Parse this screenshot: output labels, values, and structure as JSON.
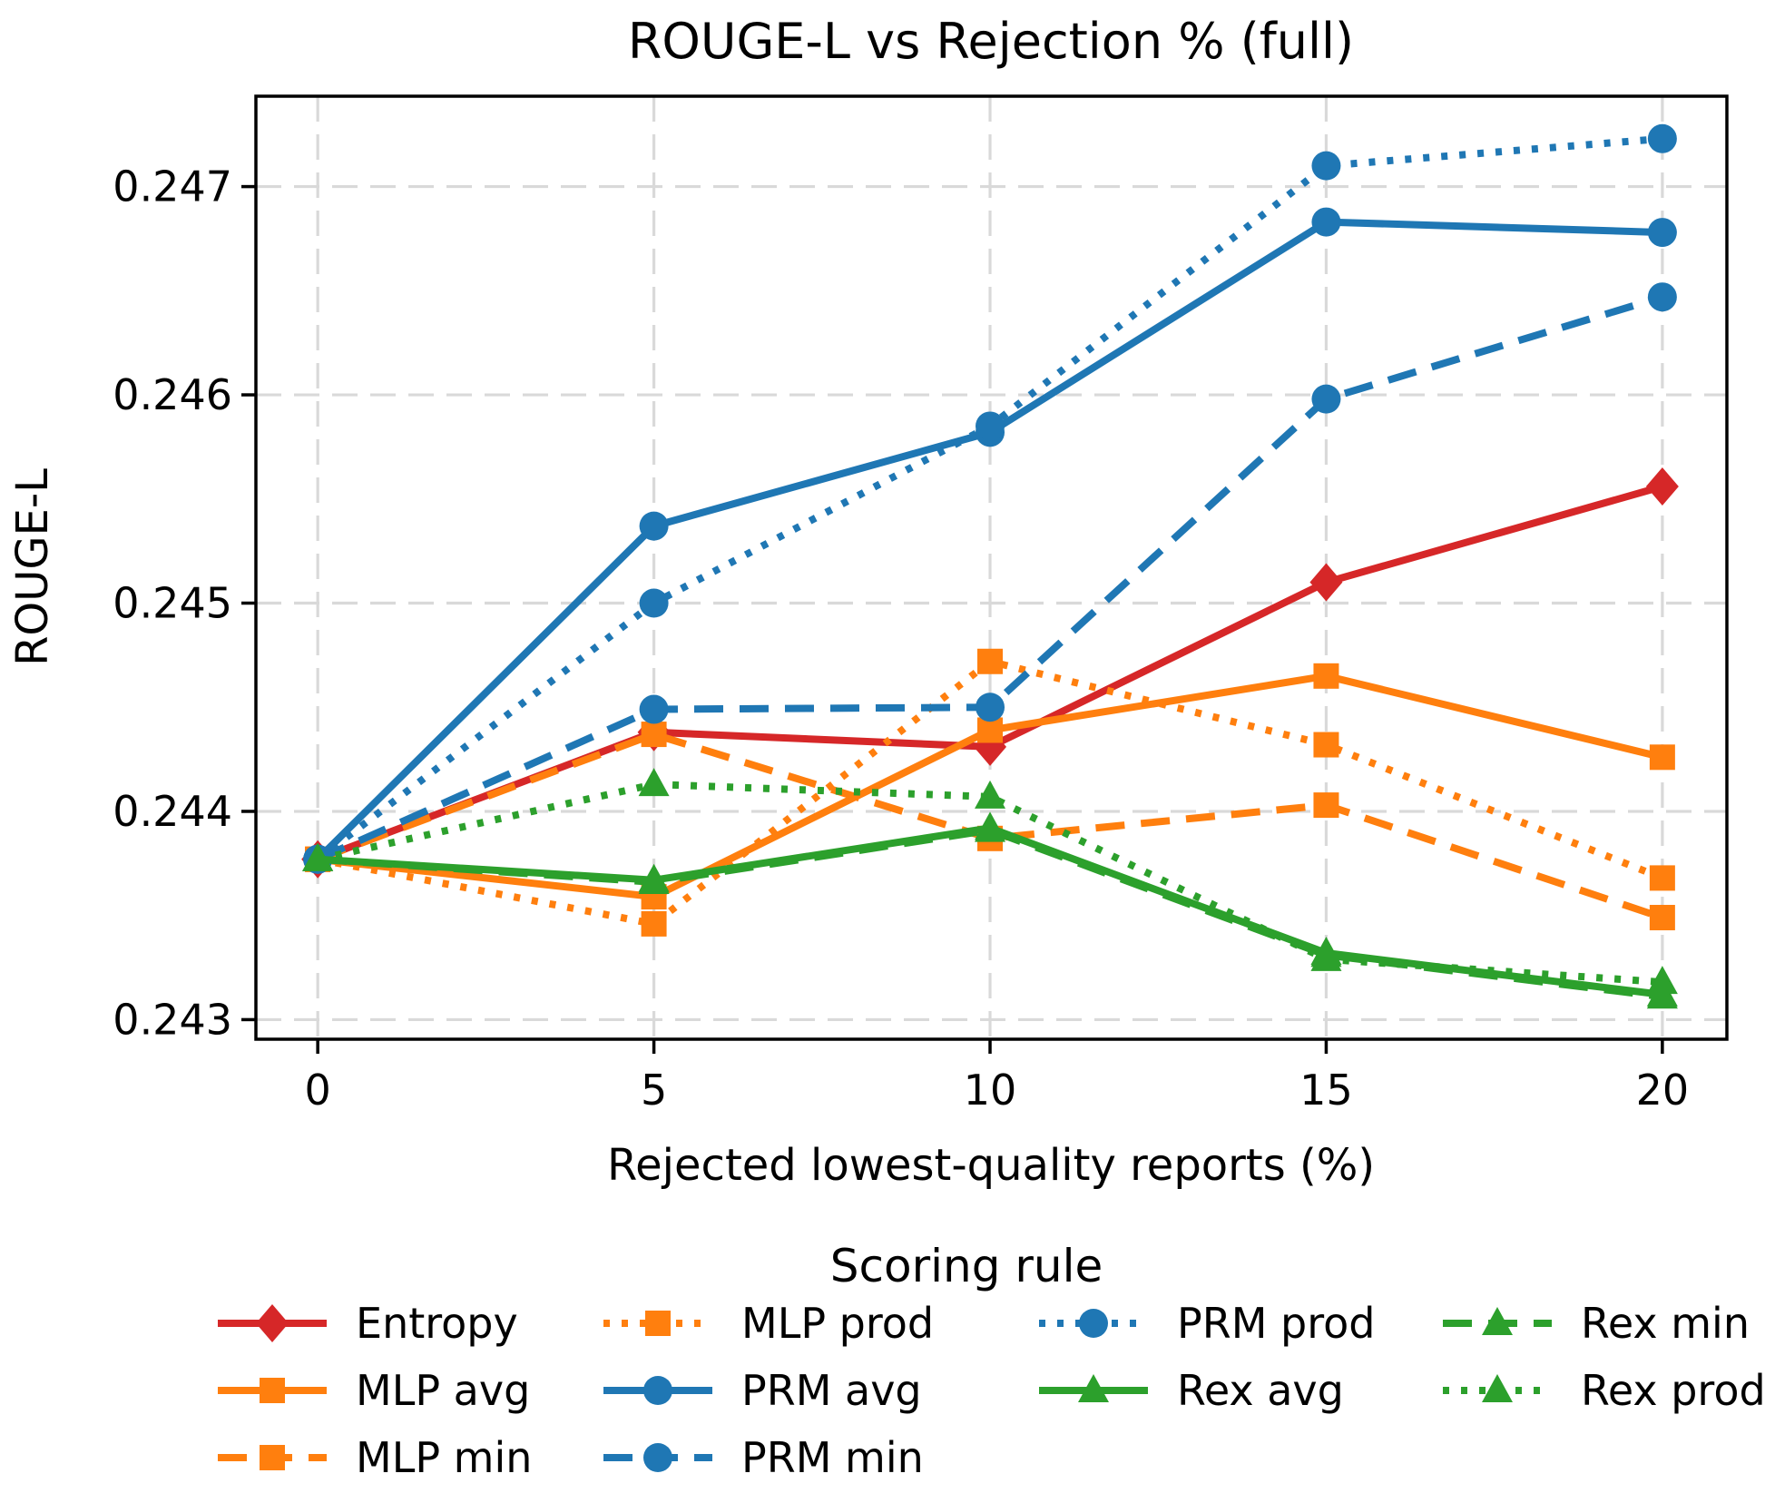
{
  "chart_data": {
    "type": "line",
    "title": "ROUGE-L vs Rejection % (full)",
    "xlabel": "Rejected lowest-quality reports (%)",
    "ylabel": "ROUGE-L",
    "legend_title": "Scoring rule",
    "legend_position": "below",
    "legend_ncol": 4,
    "grid": true,
    "x": [
      0,
      5,
      10,
      15,
      20
    ],
    "xticks": [
      0,
      5,
      10,
      15,
      20
    ],
    "yticks": [
      0.243,
      0.244,
      0.245,
      0.246,
      0.247
    ],
    "xlim": [
      -0.92,
      20.96
    ],
    "ylim": [
      0.242906,
      0.247434
    ],
    "series": [
      {
        "name": "Entropy",
        "color": "#d62728",
        "linestyle": "solid",
        "marker": "diamond",
        "values": [
          0.24377,
          0.24438,
          0.24431,
          0.2451,
          0.24556
        ]
      },
      {
        "name": "MLP avg",
        "color": "#ff7f0e",
        "linestyle": "solid",
        "marker": "square",
        "values": [
          0.24377,
          0.24359,
          0.24439,
          0.24465,
          0.24426
        ]
      },
      {
        "name": "MLP min",
        "color": "#ff7f0e",
        "linestyle": "dashed",
        "marker": "square",
        "values": [
          0.24377,
          0.24437,
          0.24387,
          0.24403,
          0.24349
        ]
      },
      {
        "name": "MLP prod",
        "color": "#ff7f0e",
        "linestyle": "dotted",
        "marker": "square",
        "values": [
          0.24377,
          0.24346,
          0.24472,
          0.24432,
          0.24368
        ]
      },
      {
        "name": "PRM avg",
        "color": "#1f77b4",
        "linestyle": "solid",
        "marker": "circle",
        "values": [
          0.24377,
          0.24537,
          0.24582,
          0.24683,
          0.24678
        ]
      },
      {
        "name": "PRM min",
        "color": "#1f77b4",
        "linestyle": "dashed",
        "marker": "circle",
        "values": [
          0.24377,
          0.24449,
          0.2445,
          0.24598,
          0.24647
        ]
      },
      {
        "name": "PRM prod",
        "color": "#1f77b4",
        "linestyle": "dotted",
        "marker": "circle",
        "values": [
          0.24377,
          0.245,
          0.24585,
          0.2471,
          0.24723
        ]
      },
      {
        "name": "Rex avg",
        "color": "#2ca02c",
        "linestyle": "solid",
        "marker": "triangle",
        "values": [
          0.24377,
          0.24367,
          0.24392,
          0.24332,
          0.24312
        ]
      },
      {
        "name": "Rex min",
        "color": "#2ca02c",
        "linestyle": "dashed",
        "marker": "triangle",
        "values": [
          0.24377,
          0.24366,
          0.24391,
          0.24331,
          0.24311
        ]
      },
      {
        "name": "Rex prod",
        "color": "#2ca02c",
        "linestyle": "dotted",
        "marker": "triangle",
        "values": [
          0.24377,
          0.24413,
          0.24407,
          0.24329,
          0.24318
        ]
      }
    ],
    "colors": {
      "entropy_red": "#d62728",
      "mlp_orange": "#ff7f0e",
      "prm_blue": "#1f77b4",
      "rex_green": "#2ca02c",
      "grid_gray": "#d9d9d9",
      "axis_black": "#000000"
    }
  }
}
